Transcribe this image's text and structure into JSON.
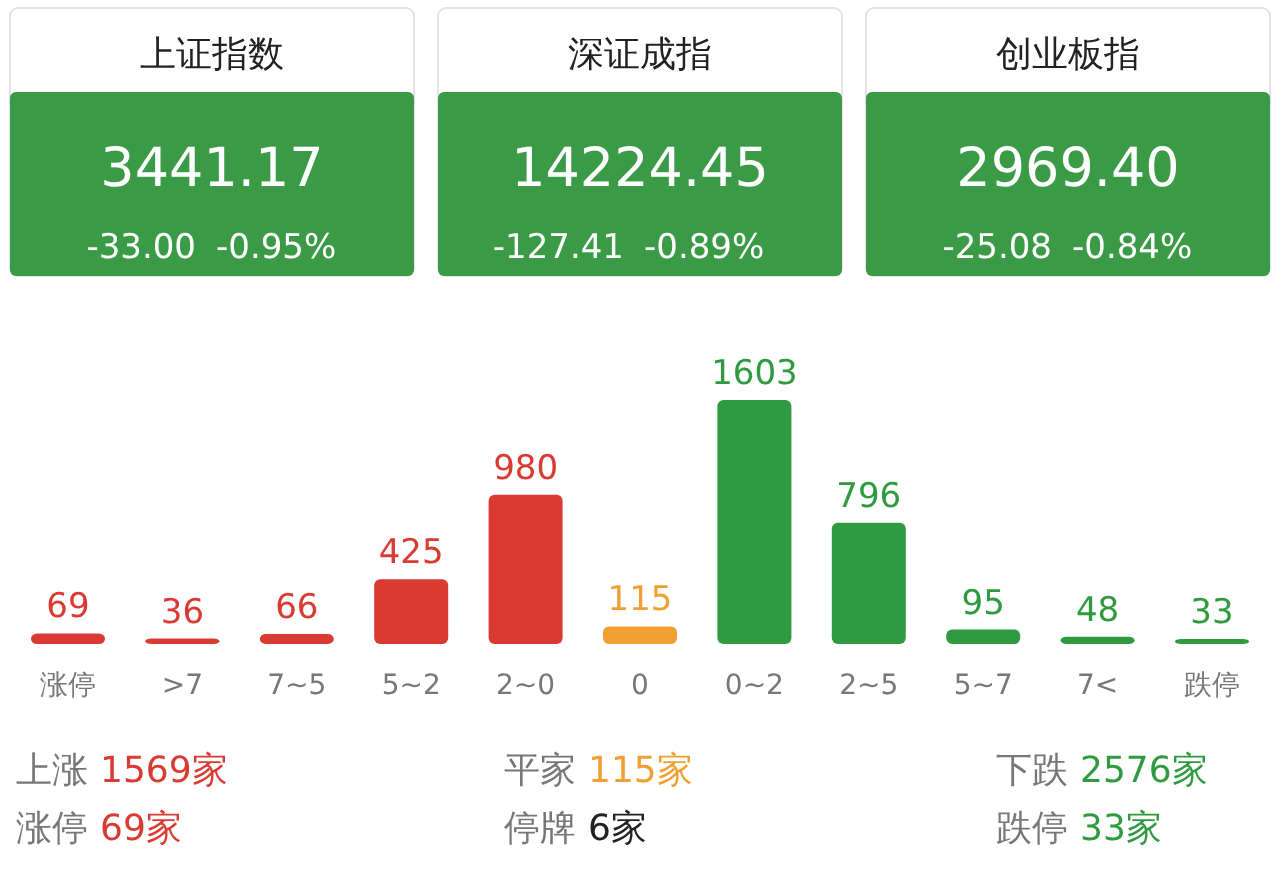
{
  "chart_data": [
    {
      "type": "other",
      "title": "上证指数",
      "annotations": [
        "3441.17",
        "-33.00",
        "-0.95%"
      ]
    },
    {
      "type": "other",
      "title": "深证成指",
      "annotations": [
        "14224.45",
        "-127.41",
        "-0.89%"
      ]
    },
    {
      "type": "other",
      "title": "创业板指",
      "annotations": [
        "2969.40",
        "-25.08",
        "-0.84%"
      ]
    },
    {
      "type": "bar",
      "categories": [
        "涨停",
        ">7",
        "7~5",
        "5~2",
        "2~0",
        "0",
        "0~2",
        "2~5",
        "5~7",
        "7<",
        "跌停"
      ],
      "values": [
        69,
        36,
        66,
        425,
        980,
        115,
        1603,
        796,
        95,
        48,
        33
      ],
      "colors": [
        "#d93a32",
        "#d93a32",
        "#d93a32",
        "#d93a32",
        "#d93a32",
        "#f0a033",
        "#2f9a40",
        "#2f9a40",
        "#2f9a40",
        "#2f9a40",
        "#2f9a40"
      ],
      "data_labels": true,
      "annotations": [
        "上涨",
        "1569家",
        "平家",
        "115家",
        "下跌",
        "2576家",
        "涨停",
        "69家",
        "停牌",
        "6家",
        "跌停",
        "33家"
      ]
    }
  ]
}
